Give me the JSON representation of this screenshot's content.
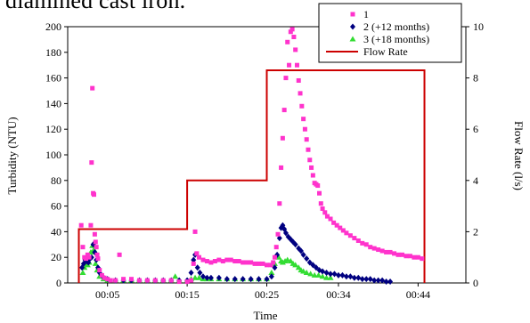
{
  "page": {
    "caption_fragment": "diamined cast iron."
  },
  "chart_data": {
    "type": "scatter",
    "xlabel": "Time",
    "ylabel": "Turbidity (NTU)",
    "y2label": "Flow Rate (l/s)",
    "x_domain_minutes": [
      0,
      50
    ],
    "x_tick_labels": [
      "00:05",
      "00:15",
      "00:25",
      "00:34",
      "00:44"
    ],
    "x_tick_values_minutes": [
      5,
      15,
      25,
      34,
      44
    ],
    "ylim": [
      0,
      200
    ],
    "y_ticks": [
      0,
      20,
      40,
      60,
      80,
      100,
      120,
      140,
      160,
      180,
      200
    ],
    "y2lim": [
      0,
      10
    ],
    "y2_ticks": [
      0,
      2,
      4,
      6,
      8,
      10
    ],
    "grid": false,
    "legend": {
      "placement": "top-right",
      "entries": [
        "1",
        "2 (+12 months)",
        "3 (+18 months)",
        "Flow Rate"
      ]
    },
    "colors": {
      "series_1": "#ff33cc",
      "series_2": "#000080",
      "series_3": "#33dd33",
      "flow_rate": "#cc0000"
    },
    "series": [
      {
        "name": "1",
        "marker": "square",
        "points": [
          [
            1.7,
            45
          ],
          [
            1.9,
            28
          ],
          [
            2.1,
            20
          ],
          [
            2.3,
            19
          ],
          [
            2.5,
            22
          ],
          [
            2.7,
            20
          ],
          [
            2.9,
            45
          ],
          [
            3.0,
            94
          ],
          [
            3.1,
            152
          ],
          [
            3.2,
            70
          ],
          [
            3.3,
            69
          ],
          [
            3.4,
            38
          ],
          [
            3.5,
            32
          ],
          [
            3.6,
            28
          ],
          [
            3.7,
            22
          ],
          [
            3.8,
            19
          ],
          [
            4.0,
            10
          ],
          [
            4.3,
            6
          ],
          [
            4.6,
            4
          ],
          [
            5.0,
            3
          ],
          [
            5.4,
            2
          ],
          [
            6.0,
            2
          ],
          [
            6.5,
            22
          ],
          [
            7.0,
            3
          ],
          [
            8.0,
            3
          ],
          [
            9.0,
            2
          ],
          [
            10.0,
            2
          ],
          [
            11.0,
            2
          ],
          [
            12.0,
            2
          ],
          [
            13.0,
            2
          ],
          [
            14.0,
            1
          ],
          [
            15.0,
            1
          ],
          [
            15.5,
            2
          ],
          [
            15.8,
            15
          ],
          [
            16.0,
            40
          ],
          [
            16.2,
            23
          ],
          [
            16.5,
            20
          ],
          [
            17.0,
            18
          ],
          [
            17.5,
            17
          ],
          [
            18.0,
            16
          ],
          [
            18.5,
            17
          ],
          [
            19.0,
            18
          ],
          [
            19.5,
            17
          ],
          [
            20.0,
            18
          ],
          [
            20.5,
            18
          ],
          [
            21.0,
            17
          ],
          [
            21.5,
            17
          ],
          [
            22.0,
            16
          ],
          [
            22.5,
            16
          ],
          [
            23.0,
            16
          ],
          [
            23.5,
            15
          ],
          [
            24.0,
            15
          ],
          [
            24.5,
            15
          ],
          [
            25.0,
            14
          ],
          [
            25.5,
            14
          ],
          [
            25.8,
            16
          ],
          [
            26.0,
            20
          ],
          [
            26.2,
            28
          ],
          [
            26.4,
            38
          ],
          [
            26.6,
            62
          ],
          [
            26.8,
            90
          ],
          [
            27.0,
            113
          ],
          [
            27.2,
            135
          ],
          [
            27.4,
            160
          ],
          [
            27.6,
            188
          ],
          [
            27.8,
            170
          ],
          [
            28.0,
            196
          ],
          [
            28.2,
            198
          ],
          [
            28.4,
            192
          ],
          [
            28.6,
            182
          ],
          [
            28.8,
            170
          ],
          [
            29.0,
            158
          ],
          [
            29.2,
            148
          ],
          [
            29.4,
            138
          ],
          [
            29.6,
            128
          ],
          [
            29.8,
            120
          ],
          [
            30.0,
            112
          ],
          [
            30.2,
            104
          ],
          [
            30.4,
            96
          ],
          [
            30.6,
            90
          ],
          [
            30.8,
            84
          ],
          [
            31.0,
            78
          ],
          [
            31.2,
            77
          ],
          [
            31.4,
            76
          ],
          [
            31.6,
            70
          ],
          [
            31.8,
            62
          ],
          [
            32.0,
            58
          ],
          [
            32.3,
            55
          ],
          [
            32.6,
            52
          ],
          [
            33.0,
            50
          ],
          [
            33.4,
            47
          ],
          [
            33.8,
            45
          ],
          [
            34.2,
            43
          ],
          [
            34.6,
            41
          ],
          [
            35.0,
            39
          ],
          [
            35.5,
            37
          ],
          [
            36.0,
            35
          ],
          [
            36.5,
            33
          ],
          [
            37.0,
            31
          ],
          [
            37.5,
            30
          ],
          [
            38.0,
            28
          ],
          [
            38.5,
            27
          ],
          [
            39.0,
            26
          ],
          [
            39.5,
            25
          ],
          [
            40.0,
            24
          ],
          [
            40.5,
            24
          ],
          [
            41.0,
            23
          ],
          [
            41.5,
            22
          ],
          [
            42.0,
            22
          ],
          [
            42.5,
            21
          ],
          [
            43.0,
            21
          ],
          [
            43.5,
            20
          ],
          [
            44.0,
            20
          ],
          [
            44.5,
            19
          ]
        ]
      },
      {
        "name": "2 (+12 months)",
        "marker": "diamond",
        "points": [
          [
            1.8,
            12
          ],
          [
            2.0,
            15
          ],
          [
            2.2,
            18
          ],
          [
            2.4,
            17
          ],
          [
            2.6,
            16
          ],
          [
            2.8,
            19
          ],
          [
            3.0,
            20
          ],
          [
            3.2,
            30
          ],
          [
            3.4,
            24
          ],
          [
            3.6,
            18
          ],
          [
            3.8,
            12
          ],
          [
            4.0,
            8
          ],
          [
            4.4,
            5
          ],
          [
            5.0,
            3
          ],
          [
            6.0,
            2
          ],
          [
            7.0,
            2
          ],
          [
            8.0,
            2
          ],
          [
            9.0,
            2
          ],
          [
            10.0,
            2
          ],
          [
            11.0,
            2
          ],
          [
            12.0,
            2
          ],
          [
            13.0,
            2
          ],
          [
            14.0,
            2
          ],
          [
            15.0,
            2
          ],
          [
            15.5,
            8
          ],
          [
            15.8,
            18
          ],
          [
            16.0,
            22
          ],
          [
            16.3,
            12
          ],
          [
            16.6,
            8
          ],
          [
            17.0,
            5
          ],
          [
            17.5,
            4
          ],
          [
            18.0,
            4
          ],
          [
            19.0,
            4
          ],
          [
            20.0,
            3
          ],
          [
            21.0,
            3
          ],
          [
            22.0,
            3
          ],
          [
            23.0,
            3
          ],
          [
            24.0,
            3
          ],
          [
            25.0,
            3
          ],
          [
            25.6,
            5
          ],
          [
            26.0,
            12
          ],
          [
            26.3,
            22
          ],
          [
            26.6,
            35
          ],
          [
            26.8,
            43
          ],
          [
            27.0,
            45
          ],
          [
            27.2,
            42
          ],
          [
            27.4,
            39
          ],
          [
            27.7,
            36
          ],
          [
            28.0,
            34
          ],
          [
            28.3,
            32
          ],
          [
            28.6,
            30
          ],
          [
            29.0,
            27
          ],
          [
            29.3,
            25
          ],
          [
            29.6,
            22
          ],
          [
            30.0,
            19
          ],
          [
            30.4,
            16
          ],
          [
            30.8,
            14
          ],
          [
            31.2,
            12
          ],
          [
            31.6,
            10
          ],
          [
            32.0,
            9
          ],
          [
            32.5,
            8
          ],
          [
            33.0,
            7
          ],
          [
            33.5,
            7
          ],
          [
            34.0,
            6
          ],
          [
            34.5,
            6
          ],
          [
            35.0,
            5
          ],
          [
            35.5,
            5
          ],
          [
            36.0,
            4
          ],
          [
            36.5,
            4
          ],
          [
            37.0,
            3
          ],
          [
            37.5,
            3
          ],
          [
            38.0,
            3
          ],
          [
            38.5,
            2
          ],
          [
            39.0,
            2
          ],
          [
            39.5,
            2
          ],
          [
            40.0,
            1
          ],
          [
            40.5,
            1
          ]
        ]
      },
      {
        "name": "3 (+18 months)",
        "marker": "triangle",
        "points": [
          [
            1.9,
            8
          ],
          [
            2.1,
            12
          ],
          [
            2.3,
            15
          ],
          [
            2.5,
            14
          ],
          [
            2.7,
            16
          ],
          [
            2.9,
            24
          ],
          [
            3.1,
            29
          ],
          [
            3.3,
            26
          ],
          [
            3.5,
            15
          ],
          [
            3.7,
            10
          ],
          [
            4.0,
            5
          ],
          [
            4.5,
            3
          ],
          [
            5.0,
            2
          ],
          [
            6.0,
            2
          ],
          [
            7.0,
            2
          ],
          [
            8.0,
            2
          ],
          [
            9.0,
            2
          ],
          [
            10.0,
            2
          ],
          [
            11.0,
            2
          ],
          [
            12.0,
            2
          ],
          [
            13.0,
            2
          ],
          [
            13.5,
            5
          ],
          [
            14.0,
            2
          ],
          [
            15.0,
            2
          ],
          [
            15.5,
            3
          ],
          [
            16.0,
            4
          ],
          [
            16.5,
            4
          ],
          [
            17.0,
            3
          ],
          [
            17.5,
            3
          ],
          [
            18.0,
            3
          ],
          [
            19.0,
            3
          ],
          [
            20.0,
            3
          ],
          [
            21.0,
            3
          ],
          [
            22.0,
            3
          ],
          [
            23.0,
            3
          ],
          [
            24.0,
            3
          ],
          [
            25.0,
            3
          ],
          [
            25.6,
            8
          ],
          [
            26.0,
            15
          ],
          [
            26.3,
            22
          ],
          [
            26.5,
            20
          ],
          [
            26.8,
            17
          ],
          [
            27.0,
            16
          ],
          [
            27.3,
            17
          ],
          [
            27.6,
            18
          ],
          [
            28.0,
            17
          ],
          [
            28.3,
            15
          ],
          [
            28.6,
            14
          ],
          [
            29.0,
            12
          ],
          [
            29.3,
            10
          ],
          [
            29.6,
            9
          ],
          [
            30.0,
            8
          ],
          [
            30.5,
            7
          ],
          [
            31.0,
            6
          ],
          [
            31.5,
            6
          ],
          [
            32.0,
            5
          ],
          [
            32.5,
            4
          ],
          [
            33.0,
            4
          ]
        ]
      },
      {
        "name": "Flow Rate",
        "type": "step-line",
        "axis": "y2",
        "points": [
          [
            1.4,
            0
          ],
          [
            1.4,
            2.1
          ],
          [
            15.0,
            2.1
          ],
          [
            15.0,
            4.0
          ],
          [
            25.0,
            4.0
          ],
          [
            25.0,
            8.3
          ],
          [
            44.8,
            8.3
          ],
          [
            44.8,
            0
          ]
        ]
      }
    ]
  }
}
